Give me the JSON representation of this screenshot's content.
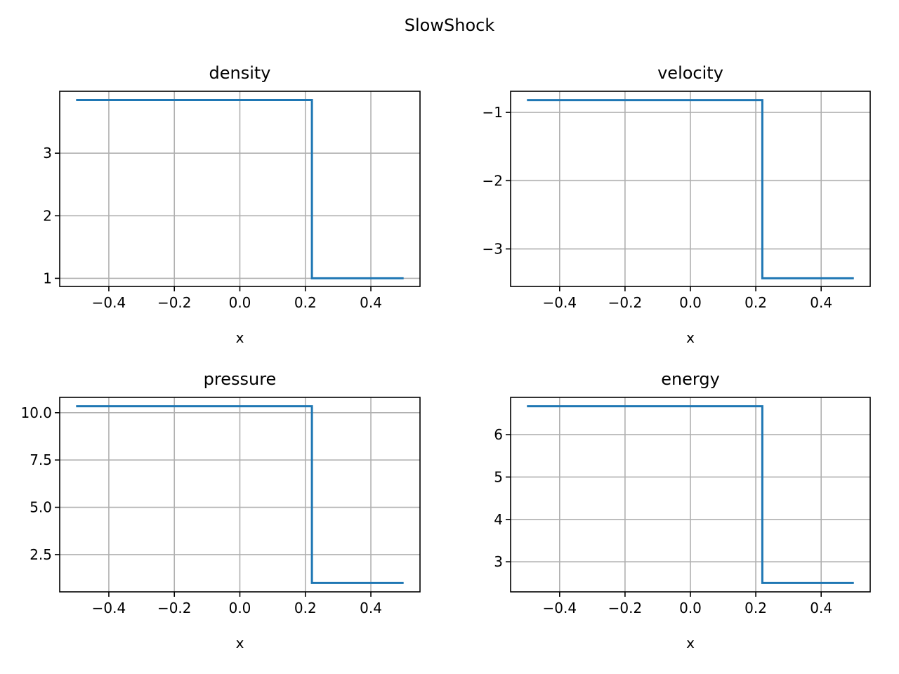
{
  "figure": {
    "title": "SlowShock",
    "line_color": "#1f77b4",
    "grid_color": "#b0b0b0"
  },
  "chart_data": [
    {
      "type": "line",
      "title": "density",
      "xlabel": "x",
      "ylabel": "",
      "xlim": [
        -0.55,
        0.55
      ],
      "ylim": [
        0.87,
        3.99
      ],
      "grid": true,
      "xticks": [
        -0.4,
        -0.2,
        0.0,
        0.2,
        0.4
      ],
      "xtick_labels": [
        "−0.4",
        "−0.2",
        "0.0",
        "0.2",
        "0.4"
      ],
      "yticks": [
        1,
        2,
        3
      ],
      "ytick_labels": [
        "1",
        "2",
        "3"
      ],
      "series": [
        {
          "x": [
            -0.5,
            0.22,
            0.22,
            0.5
          ],
          "y": [
            3.85,
            3.85,
            1.0,
            1.0
          ]
        }
      ]
    },
    {
      "type": "line",
      "title": "velocity",
      "xlabel": "x",
      "ylabel": "",
      "xlim": [
        -0.55,
        0.55
      ],
      "ylim": [
        -3.55,
        -0.69
      ],
      "grid": true,
      "xticks": [
        -0.4,
        -0.2,
        0.0,
        0.2,
        0.4
      ],
      "xtick_labels": [
        "−0.4",
        "−0.2",
        "0.0",
        "0.2",
        "0.4"
      ],
      "yticks": [
        -1,
        -2,
        -3
      ],
      "ytick_labels": [
        "−1",
        "−2",
        "−3"
      ],
      "series": [
        {
          "x": [
            -0.5,
            0.22,
            0.22,
            0.5
          ],
          "y": [
            -0.82,
            -0.82,
            -3.43,
            -3.43
          ]
        }
      ]
    },
    {
      "type": "line",
      "title": "pressure",
      "xlabel": "x",
      "ylabel": "",
      "xlim": [
        -0.55,
        0.55
      ],
      "ylim": [
        0.53,
        10.81
      ],
      "grid": true,
      "xticks": [
        -0.4,
        -0.2,
        0.0,
        0.2,
        0.4
      ],
      "xtick_labels": [
        "−0.4",
        "−0.2",
        "0.0",
        "0.2",
        "0.4"
      ],
      "yticks": [
        2.5,
        5.0,
        7.5,
        10.0
      ],
      "ytick_labels": [
        "2.5",
        "5.0",
        "7.5",
        "10.0"
      ],
      "series": [
        {
          "x": [
            -0.5,
            0.22,
            0.22,
            0.5
          ],
          "y": [
            10.34,
            10.34,
            1.0,
            1.0
          ]
        }
      ]
    },
    {
      "type": "line",
      "title": "energy",
      "xlabel": "x",
      "ylabel": "",
      "xlim": [
        -0.55,
        0.55
      ],
      "ylim": [
        2.29,
        6.88
      ],
      "grid": true,
      "xticks": [
        -0.4,
        -0.2,
        0.0,
        0.2,
        0.4
      ],
      "xtick_labels": [
        "−0.4",
        "−0.2",
        "0.0",
        "0.2",
        "0.4"
      ],
      "yticks": [
        3,
        4,
        5,
        6
      ],
      "ytick_labels": [
        "3",
        "4",
        "5",
        "6"
      ],
      "series": [
        {
          "x": [
            -0.5,
            0.22,
            0.22,
            0.5
          ],
          "y": [
            6.67,
            6.67,
            2.5,
            2.5
          ]
        }
      ]
    }
  ]
}
